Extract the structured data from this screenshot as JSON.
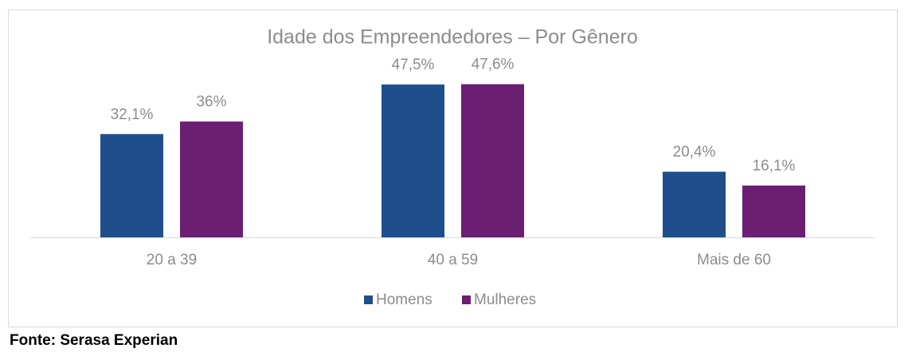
{
  "chart_data": {
    "type": "bar",
    "title": "Idade dos Empreendedores – Por Gênero",
    "categories": [
      "20 a 39",
      "40 a 59",
      "Mais de 60"
    ],
    "series": [
      {
        "name": "Homens",
        "color": "#1f4e8c",
        "values": [
          32.1,
          47.5,
          20.4
        ],
        "value_labels": [
          "32,1%",
          "47,5%",
          "20,4%"
        ]
      },
      {
        "name": "Mulheres",
        "color": "#6a1f73",
        "values": [
          36,
          47.6,
          16.1
        ],
        "value_labels": [
          "36%",
          "47,6%",
          "16,1%"
        ]
      }
    ],
    "legend": "bottom",
    "source": "Fonte: Serasa Experian"
  }
}
